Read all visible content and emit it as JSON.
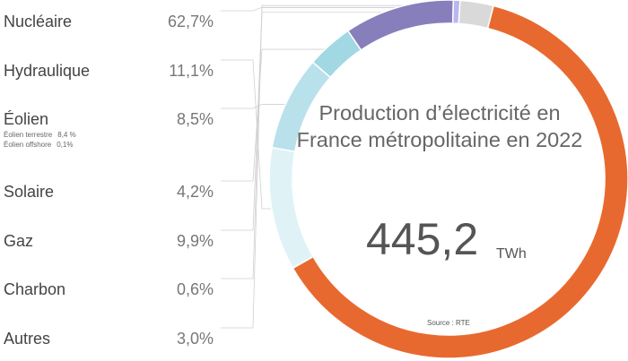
{
  "chart_data": {
    "type": "donut",
    "title": "Production d’électricité en France métropolitaine en 2022",
    "total_value": "445,2",
    "total_unit": "TWh",
    "source": "Source : RTE",
    "categories": [
      "Nucléaire",
      "Hydraulique",
      "Éolien",
      "Solaire",
      "Gaz",
      "Charbon",
      "Autres"
    ],
    "values": [
      62.7,
      11.1,
      8.5,
      4.2,
      9.9,
      0.6,
      3.0
    ],
    "value_labels": [
      "62,7%",
      "11,1%",
      "8,5%",
      "4,2%",
      "9,9%",
      "0,6%",
      "3,0%"
    ],
    "colors": [
      "#e8692f",
      "#dff3f7",
      "#b9e1eb",
      "#a2d8e4",
      "#877fbb",
      "#b9b6f0",
      "#d9d9d9"
    ],
    "sub_items": [
      {
        "label": "Éolien terrestre",
        "value": "8,4 %"
      },
      {
        "label": "Éolien offshore",
        "value": "0,1%"
      }
    ]
  }
}
